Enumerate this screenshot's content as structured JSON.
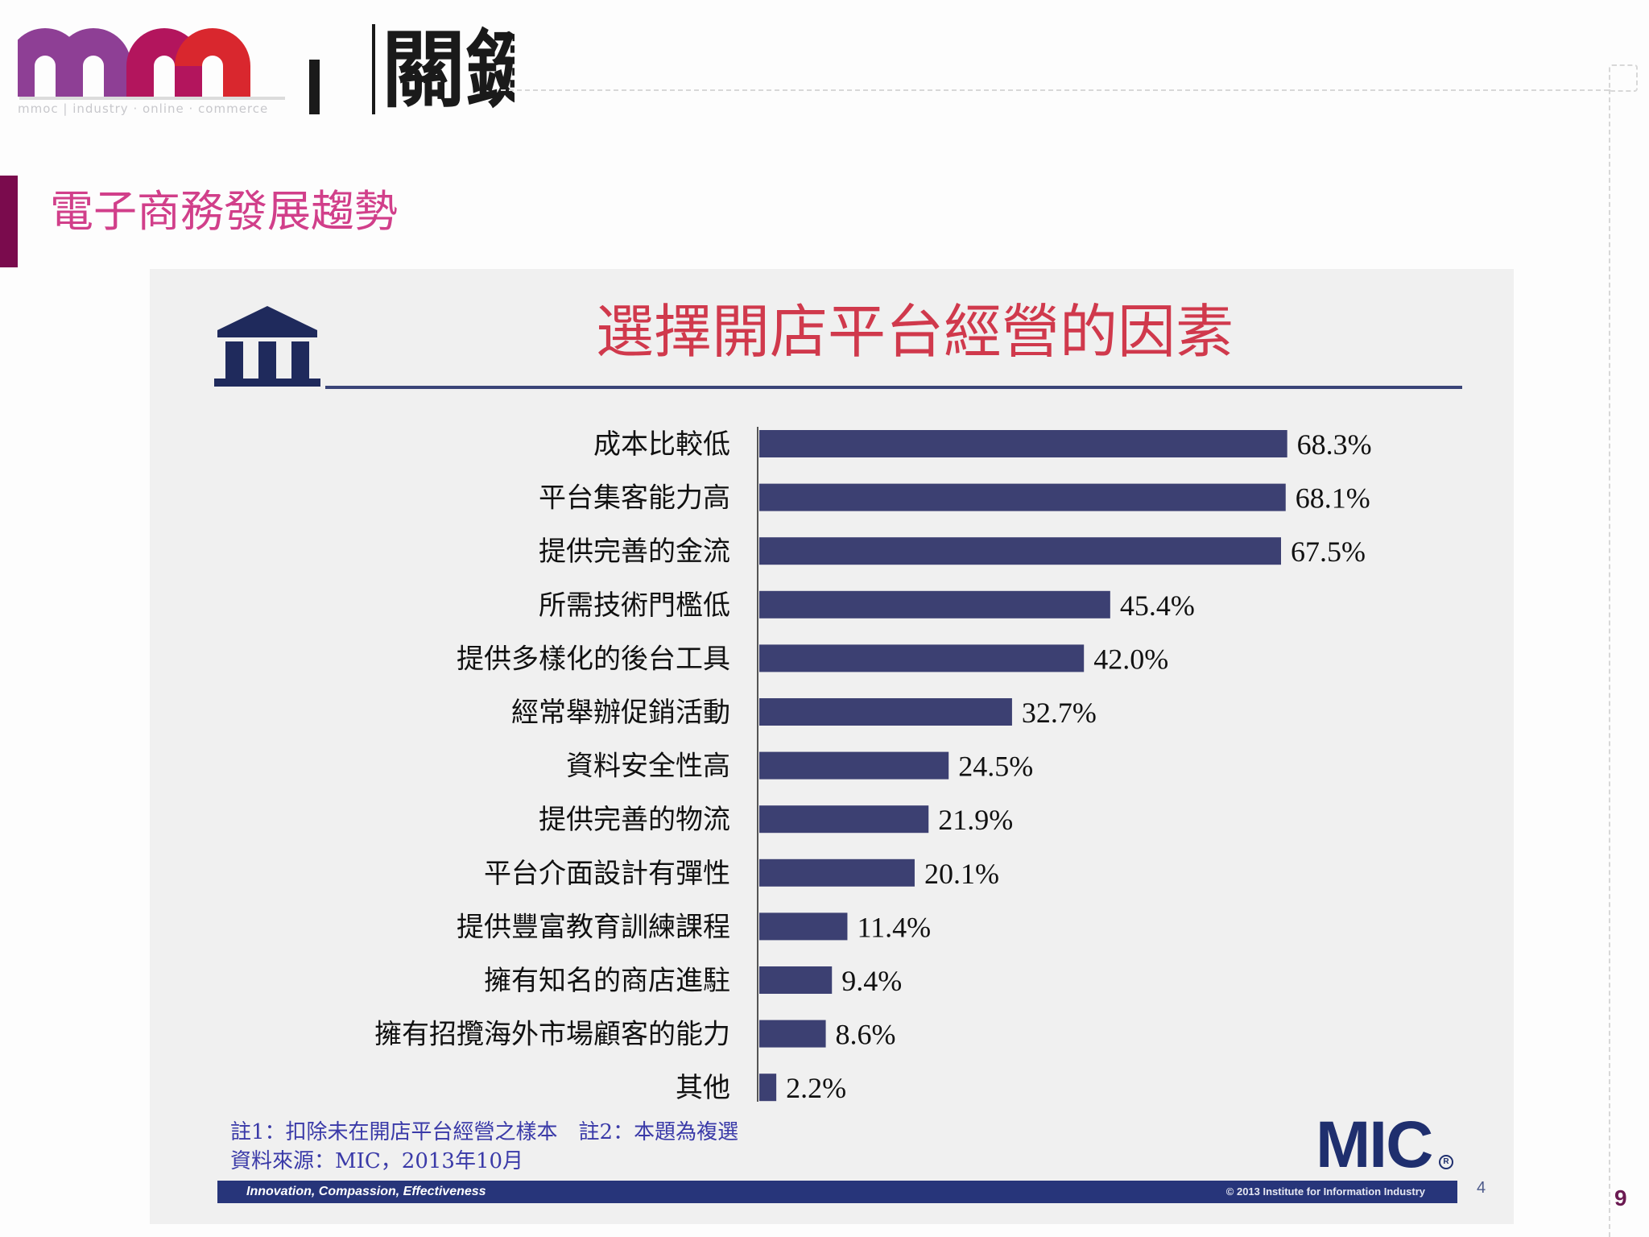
{
  "header": {
    "logo_text": "關鍵",
    "logo_subtext": "mmoc | industry · online · commerce",
    "title": "電子商務發展趨勢",
    "page_number": "9"
  },
  "colors": {
    "logo_purple": "#8e3f95",
    "logo_magenta": "#b3155d",
    "logo_red": "#d9272e",
    "title_pink": "#d13f8a",
    "accent_bar": "#7a0b4d",
    "chart_title_red": "#d0394c",
    "bar_navy": "#3c4072",
    "footer_navy": "#27357a"
  },
  "chart_slide": {
    "icon": "bank-icon",
    "notes_line1": "註1：扣除未在開店平台經營之樣本　註2：本題為複選",
    "notes_line2": "資料來源：MIC，2013年10月",
    "brand": "MIC",
    "brand_mark": "R",
    "footer_motto": "Innovation, Compassion, Effectiveness",
    "footer_copyright": "© 2013 Institute for Information Industry",
    "slide_number": "4"
  },
  "chart_data": {
    "type": "bar",
    "orientation": "horizontal",
    "title": "選擇開店平台經營的因素",
    "unit": "%",
    "categories": [
      "成本比較低",
      "平台集客能力高",
      "提供完善的金流",
      "所需技術門檻低",
      "提供多樣化的後台工具",
      "經常舉辦促銷活動",
      "資料安全性高",
      "提供完善的物流",
      "平台介面設計有彈性",
      "提供豐富教育訓練課程",
      "擁有知名的商店進駐",
      "擁有招攬海外市場顧客的能力",
      "其他"
    ],
    "values": [
      68.3,
      68.1,
      67.5,
      45.4,
      42.0,
      32.7,
      24.5,
      21.9,
      20.1,
      11.4,
      9.4,
      8.6,
      2.2
    ],
    "value_labels": [
      "68.3%",
      "68.1%",
      "67.5%",
      "45.4%",
      "42.0%",
      "32.7%",
      "24.5%",
      "21.9%",
      "20.1%",
      "11.4%",
      "9.4%",
      "8.6%",
      "2.2%"
    ],
    "xlim": [
      0,
      100
    ],
    "grid": false,
    "legend": "none"
  }
}
